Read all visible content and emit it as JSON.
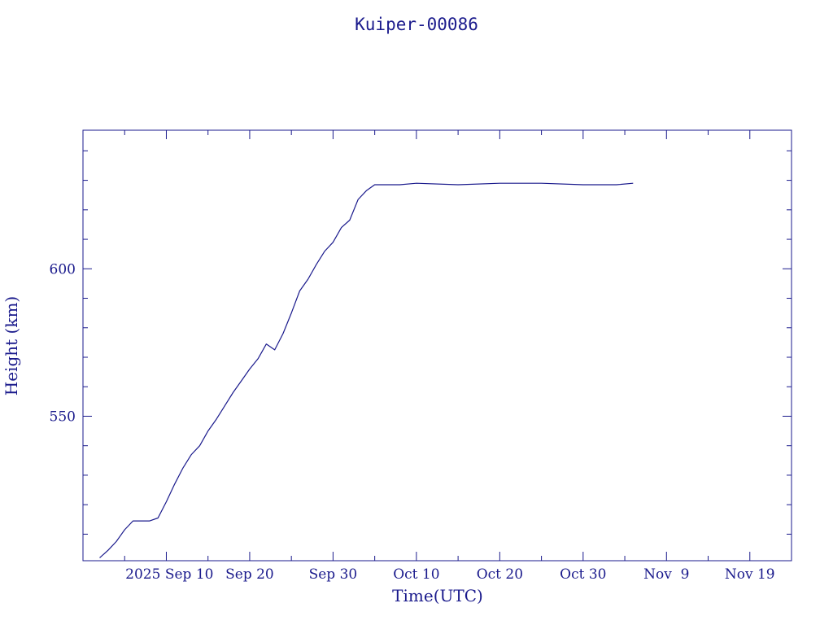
{
  "chart_data": {
    "type": "line",
    "title": "Kuiper-00086",
    "xlabel": "Time(UTC)",
    "ylabel": "Height (km)",
    "x_tick_labels": [
      "2025 Sep 10",
      "Sep 20",
      "Sep 30",
      "Oct 10",
      "Oct 20",
      "Oct 30",
      "Nov  9",
      "Nov 19"
    ],
    "y_tick_labels": [
      "550",
      "600"
    ],
    "xlim": [
      "2025-08-31",
      "2025-11-24"
    ],
    "ylim": [
      501,
      647
    ],
    "grid": false,
    "color": "#1a1a8c",
    "series": [
      {
        "x": [
          "2025-09-02",
          "2025-09-03",
          "2025-09-04",
          "2025-09-04T12",
          "2025-09-05",
          "2025-09-06",
          "2025-09-07",
          "2025-09-08",
          "2025-09-09",
          "2025-09-10",
          "2025-09-11",
          "2025-09-12",
          "2025-09-13",
          "2025-09-14",
          "2025-09-15",
          "2025-09-16",
          "2025-09-17",
          "2025-09-18",
          "2025-09-19",
          "2025-09-20",
          "2025-09-21",
          "2025-09-22",
          "2025-09-23",
          "2025-09-24",
          "2025-09-25",
          "2025-09-26",
          "2025-09-27",
          "2025-09-28",
          "2025-09-29",
          "2025-09-30",
          "2025-10-01",
          "2025-10-02",
          "2025-10-03",
          "2025-10-04",
          "2025-10-05",
          "2025-10-06",
          "2025-10-07",
          "2025-10-08",
          "2025-10-10",
          "2025-10-15",
          "2025-10-20",
          "2025-10-25",
          "2025-10-30",
          "2025-11-01",
          "2025-11-03",
          "2025-11-05"
        ],
        "y": [
          502,
          504.5,
          507.5,
          509.5,
          511.5,
          514.5,
          514.5,
          514.5,
          515.5,
          521,
          527,
          532.5,
          537,
          540,
          545,
          549,
          553.5,
          558,
          562,
          566,
          569.5,
          574.5,
          572.5,
          578,
          585,
          592.5,
          596.5,
          601.5,
          606,
          609,
          614,
          616.5,
          623.5,
          626.5,
          628.5,
          628.5,
          628.5,
          628.5,
          629,
          628.5,
          629,
          629,
          628.5,
          628.5,
          628.5,
          629
        ]
      }
    ]
  }
}
